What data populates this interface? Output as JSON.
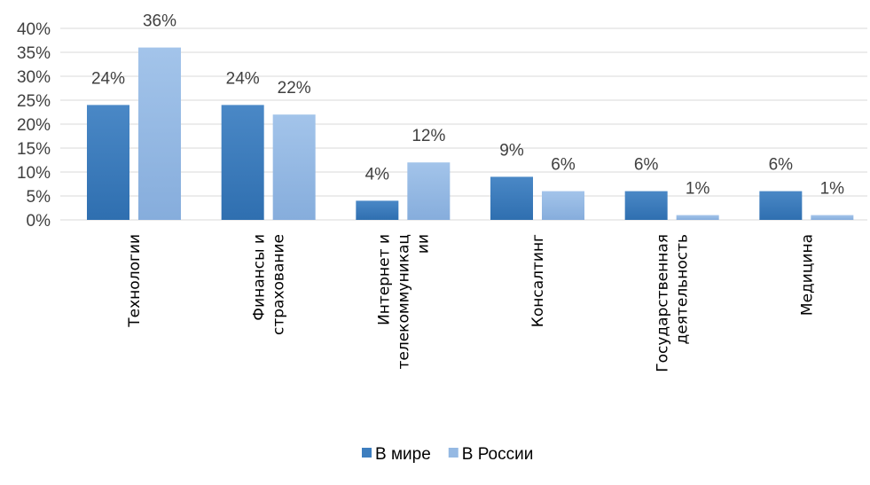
{
  "chart_data": {
    "type": "bar",
    "title": "",
    "xlabel": "",
    "ylabel": "",
    "ylim": [
      0,
      40
    ],
    "yticks": [
      "0%",
      "5%",
      "10%",
      "15%",
      "20%",
      "25%",
      "30%",
      "35%",
      "40%"
    ],
    "grid": true,
    "legend_position": "bottom",
    "categories": [
      [
        "Технологии"
      ],
      [
        "Финансы и",
        "страхование"
      ],
      [
        "Интернет и",
        "телекоммуникац",
        "ии"
      ],
      [
        "Консалтинг"
      ],
      [
        "Государственная",
        "деятельность"
      ],
      [
        "Медицина"
      ]
    ],
    "series": [
      {
        "name": "В мире",
        "values": [
          24,
          24,
          4,
          9,
          6,
          6
        ],
        "labels": [
          "24%",
          "24%",
          "4%",
          "9%",
          "6%",
          "6%"
        ],
        "color": "#3d7ebf"
      },
      {
        "name": "В России",
        "values": [
          36,
          22,
          12,
          6,
          1,
          1
        ],
        "labels": [
          "36%",
          "22%",
          "12%",
          "6%",
          "1%",
          "1%"
        ],
        "color": "#95b9e3"
      }
    ]
  }
}
